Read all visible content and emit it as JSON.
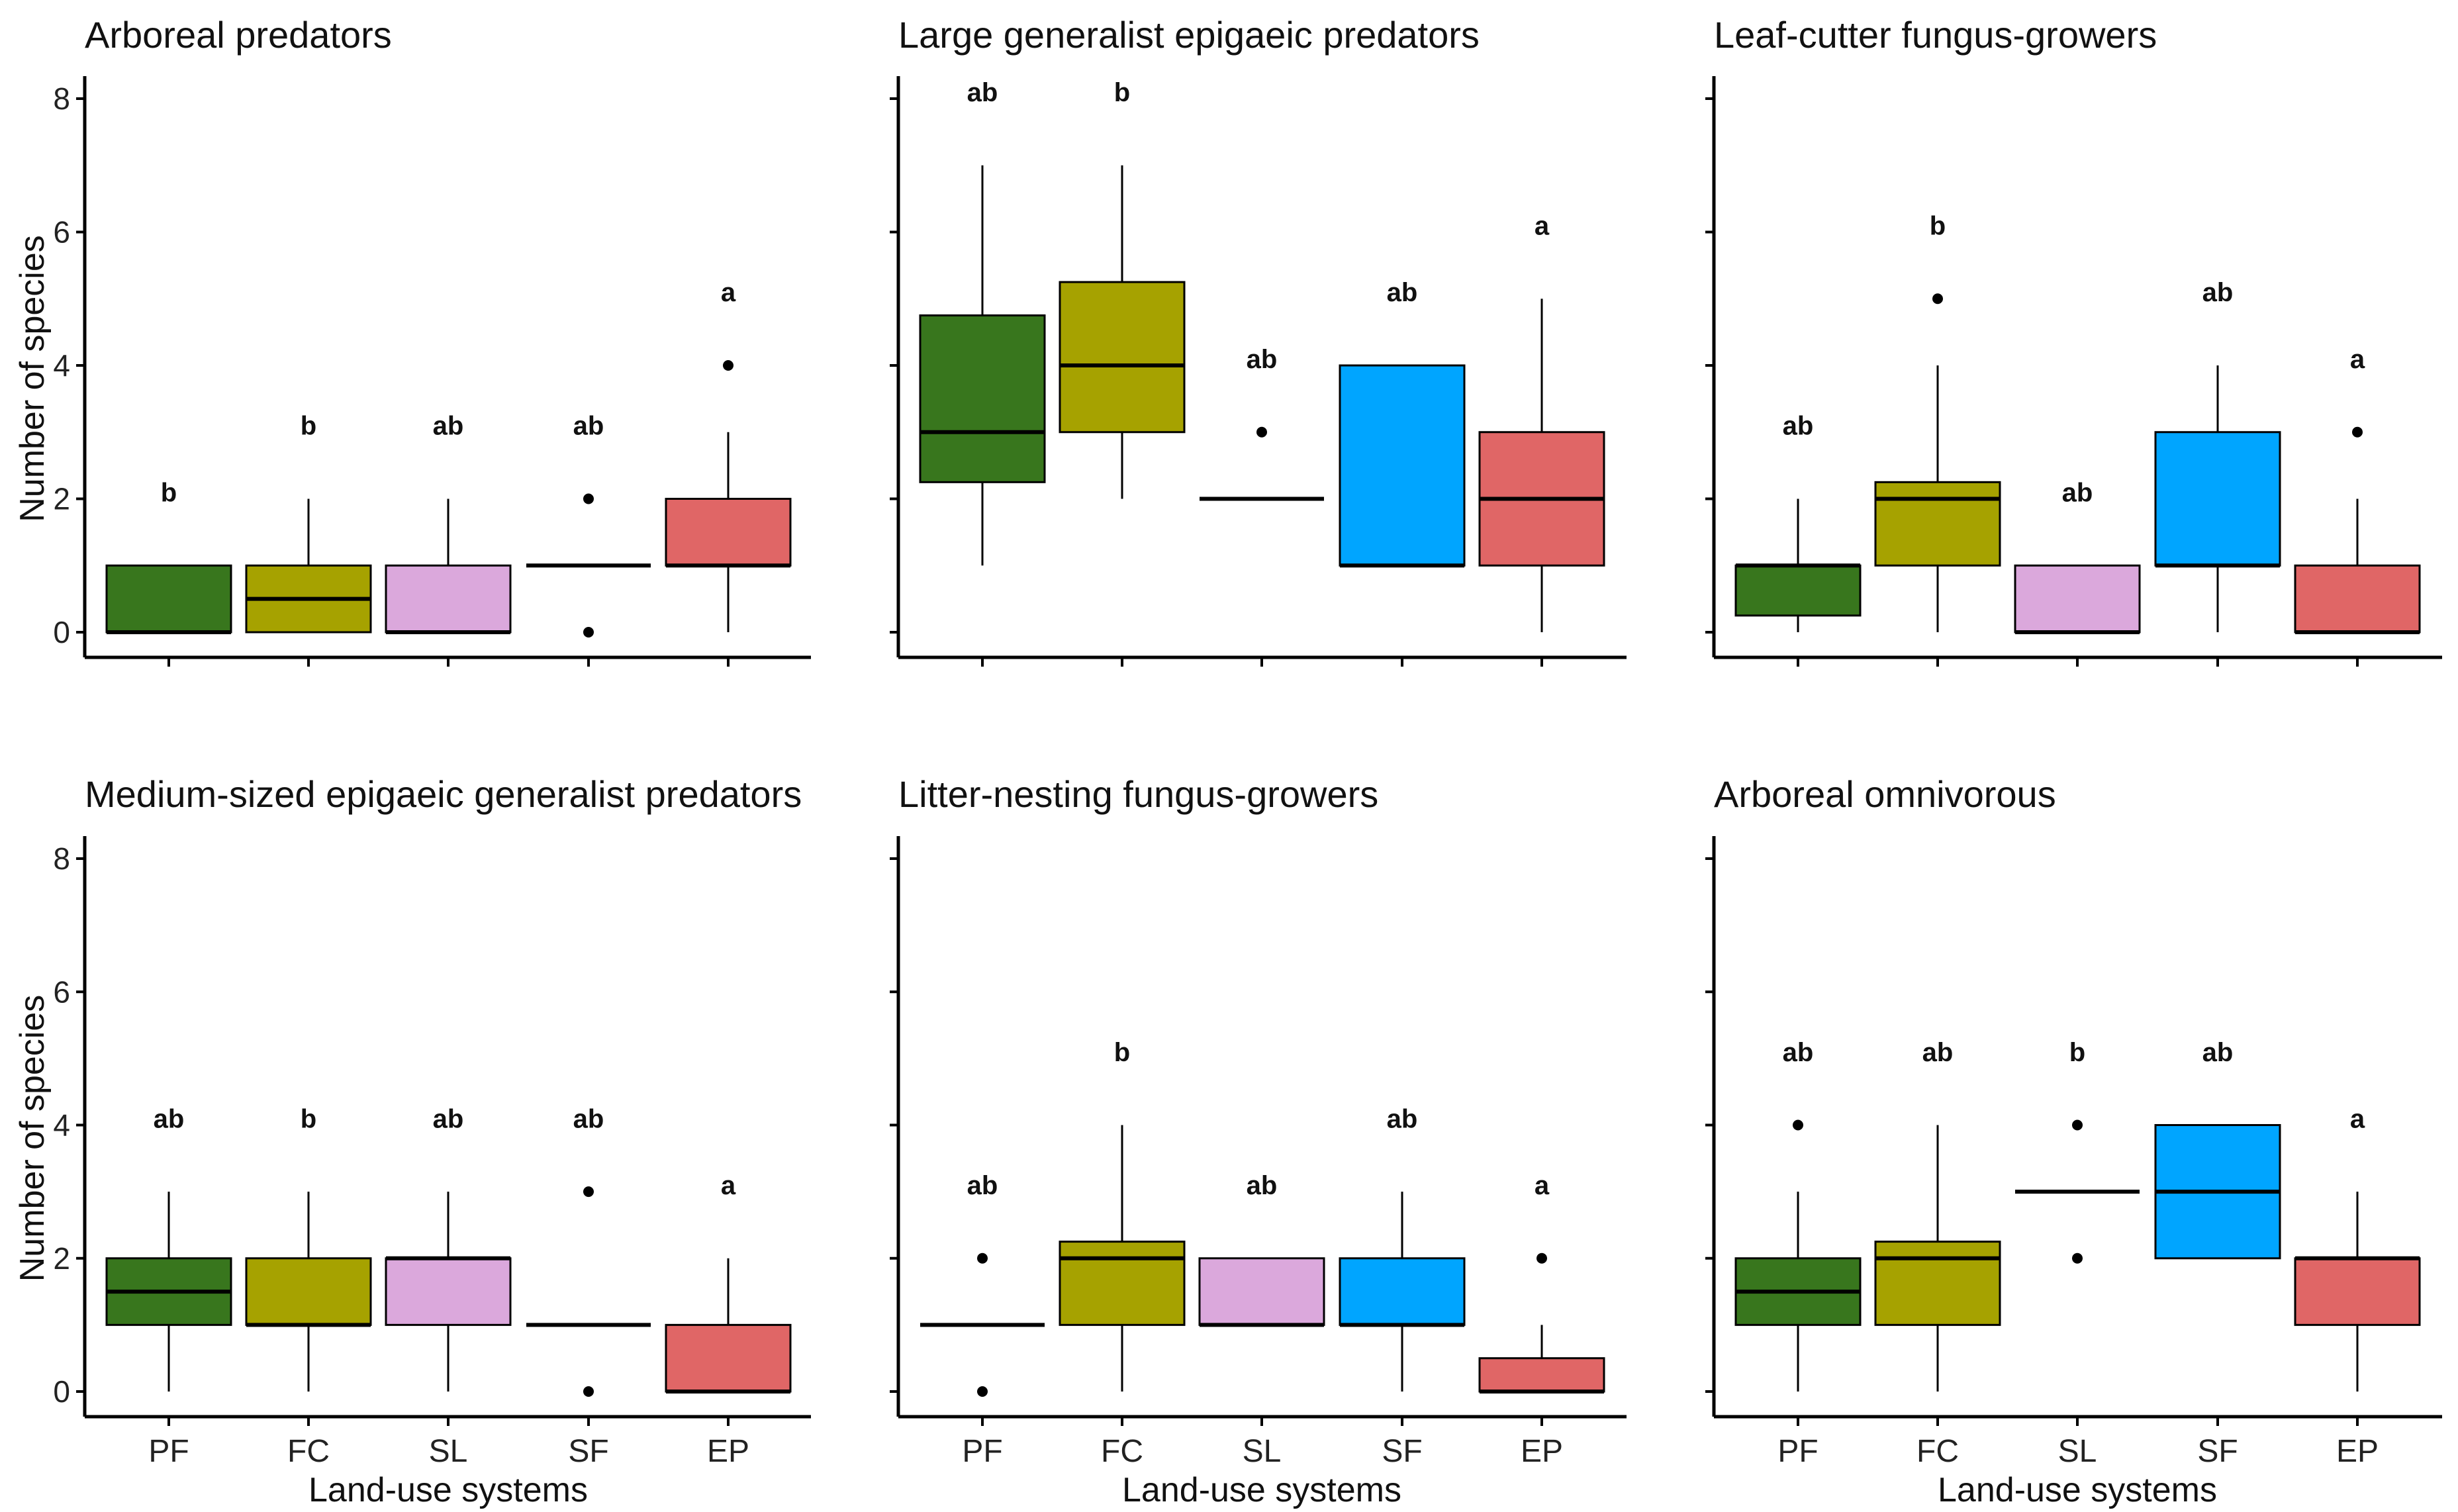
{
  "chart_data": {
    "type": "box",
    "shared": {
      "xlabel": "Land-use systems",
      "ylabel": "Number of species",
      "categories": [
        "PF",
        "FC",
        "SL",
        "SF",
        "EP"
      ],
      "yticks": [
        "0",
        "2",
        "4",
        "6",
        "8"
      ],
      "ylim": [
        0,
        8
      ],
      "colors": {
        "PF": "#38761d",
        "FC": "#a6a200",
        "SL": "#dba8dc",
        "SF": "#00a5ff",
        "EP": "#e06666"
      }
    },
    "panels": [
      {
        "title": "Arboreal predators",
        "boxes": [
          {
            "cat": "PF",
            "q1": 0,
            "med": 0,
            "q3": 1,
            "wlo": 0,
            "whi": 1,
            "out": [],
            "letter": "b",
            "lety": 2.1
          },
          {
            "cat": "FC",
            "q1": 0,
            "med": 0.5,
            "q3": 1,
            "wlo": 0,
            "whi": 2,
            "out": [],
            "letter": "b",
            "lety": 3.1
          },
          {
            "cat": "SL",
            "q1": 0,
            "med": 0,
            "q3": 1,
            "wlo": 0,
            "whi": 2,
            "out": [],
            "letter": "ab",
            "lety": 3.1
          },
          {
            "cat": "SF",
            "q1": 1,
            "med": 1,
            "q3": 1,
            "wlo": 1,
            "whi": 1,
            "out": [
              0,
              2
            ],
            "letter": "ab",
            "lety": 3.1
          },
          {
            "cat": "EP",
            "q1": 1,
            "med": 1,
            "q3": 2,
            "wlo": 0,
            "whi": 3,
            "out": [
              4
            ],
            "letter": "a",
            "lety": 5.1
          }
        ]
      },
      {
        "title": "Large generalist epigaeic predators",
        "boxes": [
          {
            "cat": "PF",
            "q1": 2.25,
            "med": 3,
            "q3": 4.75,
            "wlo": 1,
            "whi": 7,
            "out": [],
            "letter": "ab",
            "lety": 8.1
          },
          {
            "cat": "FC",
            "q1": 3,
            "med": 4,
            "q3": 5.25,
            "wlo": 2,
            "whi": 7,
            "out": [],
            "letter": "b",
            "lety": 8.1
          },
          {
            "cat": "SL",
            "q1": 2,
            "med": 2,
            "q3": 2,
            "wlo": 2,
            "whi": 2,
            "out": [
              3
            ],
            "letter": "ab",
            "lety": 4.1
          },
          {
            "cat": "SF",
            "q1": 1,
            "med": 1,
            "q3": 4,
            "wlo": 1,
            "whi": 4,
            "out": [],
            "letter": "ab",
            "lety": 5.1
          },
          {
            "cat": "EP",
            "q1": 1,
            "med": 2,
            "q3": 3,
            "wlo": 0,
            "whi": 5,
            "out": [],
            "letter": "a",
            "lety": 6.1
          }
        ]
      },
      {
        "title": "Leaf-cutter fungus-growers",
        "boxes": [
          {
            "cat": "PF",
            "q1": 0.25,
            "med": 1,
            "q3": 1,
            "wlo": 0,
            "whi": 2,
            "out": [],
            "letter": "ab",
            "lety": 3.1
          },
          {
            "cat": "FC",
            "q1": 1,
            "med": 2,
            "q3": 2.25,
            "wlo": 0,
            "whi": 4,
            "out": [
              5
            ],
            "letter": "b",
            "lety": 6.1
          },
          {
            "cat": "SL",
            "q1": 0,
            "med": 0,
            "q3": 1,
            "wlo": 0,
            "whi": 1,
            "out": [],
            "letter": "ab",
            "lety": 2.1
          },
          {
            "cat": "SF",
            "q1": 1,
            "med": 1,
            "q3": 3,
            "wlo": 0,
            "whi": 4,
            "out": [],
            "letter": "ab",
            "lety": 5.1
          },
          {
            "cat": "EP",
            "q1": 0,
            "med": 0,
            "q3": 1,
            "wlo": 0,
            "whi": 2,
            "out": [
              3
            ],
            "letter": "a",
            "lety": 4.1
          }
        ]
      },
      {
        "title": "Medium-sized epigaeic generalist predators",
        "boxes": [
          {
            "cat": "PF",
            "q1": 1,
            "med": 1.5,
            "q3": 2,
            "wlo": 0,
            "whi": 3,
            "out": [],
            "letter": "ab",
            "lety": 4.1
          },
          {
            "cat": "FC",
            "q1": 1,
            "med": 1,
            "q3": 2,
            "wlo": 0,
            "whi": 3,
            "out": [],
            "letter": "b",
            "lety": 4.1
          },
          {
            "cat": "SL",
            "q1": 1,
            "med": 2,
            "q3": 2,
            "wlo": 0,
            "whi": 3,
            "out": [],
            "letter": "ab",
            "lety": 4.1
          },
          {
            "cat": "SF",
            "q1": 1,
            "med": 1,
            "q3": 1,
            "wlo": 1,
            "whi": 1,
            "out": [
              0,
              3
            ],
            "letter": "ab",
            "lety": 4.1
          },
          {
            "cat": "EP",
            "q1": 0,
            "med": 0,
            "q3": 1,
            "wlo": 0,
            "whi": 2,
            "out": [],
            "letter": "a",
            "lety": 3.1
          }
        ]
      },
      {
        "title": "Litter-nesting fungus-growers",
        "boxes": [
          {
            "cat": "PF",
            "q1": 1,
            "med": 1,
            "q3": 1,
            "wlo": 1,
            "whi": 1,
            "out": [
              0,
              2
            ],
            "letter": "ab",
            "lety": 3.1
          },
          {
            "cat": "FC",
            "q1": 1,
            "med": 2,
            "q3": 2.25,
            "wlo": 0,
            "whi": 4,
            "out": [],
            "letter": "b",
            "lety": 5.1
          },
          {
            "cat": "SL",
            "q1": 1,
            "med": 1,
            "q3": 2,
            "wlo": 1,
            "whi": 2,
            "out": [],
            "letter": "ab",
            "lety": 3.1
          },
          {
            "cat": "SF",
            "q1": 1,
            "med": 1,
            "q3": 2,
            "wlo": 0,
            "whi": 3,
            "out": [],
            "letter": "ab",
            "lety": 4.1
          },
          {
            "cat": "EP",
            "q1": 0,
            "med": 0,
            "q3": 0.5,
            "wlo": 0,
            "whi": 1,
            "out": [
              2
            ],
            "letter": "a",
            "lety": 3.1
          }
        ]
      },
      {
        "title": "Arboreal omnivorous",
        "boxes": [
          {
            "cat": "PF",
            "q1": 1,
            "med": 1.5,
            "q3": 2,
            "wlo": 0,
            "whi": 3,
            "out": [
              4
            ],
            "letter": "ab",
            "lety": 5.1
          },
          {
            "cat": "FC",
            "q1": 1,
            "med": 2,
            "q3": 2.25,
            "wlo": 0,
            "whi": 4,
            "out": [],
            "letter": "ab",
            "lety": 5.1
          },
          {
            "cat": "SL",
            "q1": 3,
            "med": 3,
            "q3": 3,
            "wlo": 3,
            "whi": 3,
            "out": [
              2,
              4
            ],
            "letter": "b",
            "lety": 5.1
          },
          {
            "cat": "SF",
            "q1": 2,
            "med": 3,
            "q3": 4,
            "wlo": 2,
            "whi": 4,
            "out": [],
            "letter": "ab",
            "lety": 5.1
          },
          {
            "cat": "EP",
            "q1": 1,
            "med": 2,
            "q3": 2,
            "wlo": 0,
            "whi": 3,
            "out": [],
            "letter": "a",
            "lety": 4.1
          }
        ]
      }
    ]
  }
}
